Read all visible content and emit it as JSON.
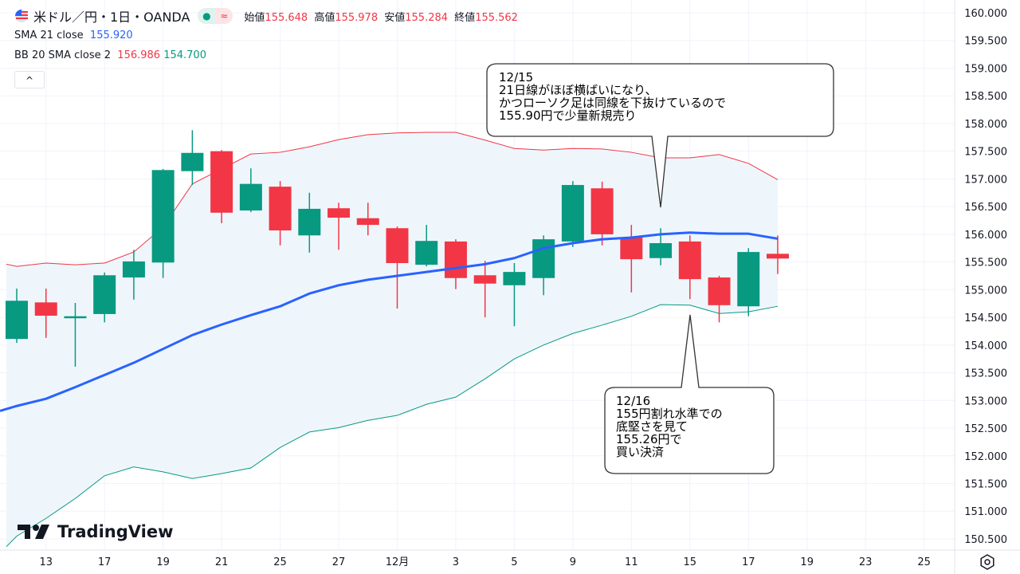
{
  "header": {
    "symbol": "米ドル／円・1日・OANDA",
    "ohlc": [
      {
        "label": "始値",
        "value": "155.648"
      },
      {
        "label": "高値",
        "value": "155.978"
      },
      {
        "label": "安値",
        "value": "155.284"
      },
      {
        "label": "終値",
        "value": "155.562"
      }
    ],
    "status_icon": "●",
    "approx_icon": "≈"
  },
  "indicators": {
    "sma": {
      "label": "SMA 21 close",
      "value": "155.920"
    },
    "bb": {
      "label": "BB 20 SMA close 2",
      "upper": "156.986",
      "lower": "154.700"
    }
  },
  "collapse_label": "^",
  "logo": {
    "text": "TradingView"
  },
  "annotations": [
    {
      "text": "12/15\n21日線がほぼ横ばいになり、\nかつローソク足は同線を下抜けているので\n155.90円で少量新規売り",
      "bar": 22
    },
    {
      "text": "12/16\n155円割れ水準での\n底堅さを見て\n155.26円で\n買い決済",
      "bar": 23
    }
  ],
  "colors": {
    "up": "#089981",
    "down": "#f23645",
    "sma": "#2962ff",
    "bb_upper": "#f23645",
    "bb_lower": "#089981",
    "bb_fill": "#eef6fc"
  },
  "chart_data": {
    "type": "candlestick",
    "title": "米ドル／円・1日・OANDA",
    "ylim": [
      150.3,
      160.0
    ],
    "y_ticks": [
      "160.000",
      "159.500",
      "159.000",
      "158.500",
      "158.000",
      "157.500",
      "157.000",
      "156.500",
      "156.000",
      "155.500",
      "155.000",
      "154.500",
      "154.000",
      "153.500",
      "153.000",
      "152.500",
      "152.000",
      "151.500",
      "151.000",
      "150.500"
    ],
    "x_labels": [
      {
        "bar": 1,
        "label": "13"
      },
      {
        "bar": 3,
        "label": "17"
      },
      {
        "bar": 5,
        "label": "19"
      },
      {
        "bar": 7,
        "label": "21"
      },
      {
        "bar": 9,
        "label": "25"
      },
      {
        "bar": 11,
        "label": "27"
      },
      {
        "bar": 13,
        "label": "12月"
      },
      {
        "bar": 15,
        "label": "3"
      },
      {
        "bar": 17,
        "label": "5"
      },
      {
        "bar": 19,
        "label": "9"
      },
      {
        "bar": 21,
        "label": "11"
      },
      {
        "bar": 23,
        "label": "15"
      },
      {
        "bar": 25,
        "label": "17"
      },
      {
        "bar": 27,
        "label": "19"
      },
      {
        "bar": 29,
        "label": "23"
      },
      {
        "bar": 31,
        "label": "25"
      }
    ],
    "candles": [
      [
        154.11,
        155.02,
        154.04,
        154.8
      ],
      [
        154.77,
        155.02,
        154.13,
        154.53
      ],
      [
        154.49,
        154.76,
        153.61,
        154.52
      ],
      [
        154.56,
        155.31,
        154.41,
        155.26
      ],
      [
        155.22,
        155.72,
        154.82,
        155.51
      ],
      [
        155.49,
        157.18,
        155.21,
        157.16
      ],
      [
        157.14,
        157.88,
        156.89,
        157.47
      ],
      [
        157.5,
        157.52,
        156.2,
        156.39
      ],
      [
        156.43,
        157.19,
        156.4,
        156.91
      ],
      [
        156.86,
        156.96,
        155.8,
        156.07
      ],
      [
        155.98,
        156.75,
        155.67,
        156.46
      ],
      [
        156.47,
        156.57,
        155.72,
        156.3
      ],
      [
        156.29,
        156.57,
        155.98,
        156.17
      ],
      [
        156.11,
        156.14,
        154.66,
        155.48
      ],
      [
        155.45,
        156.17,
        155.42,
        155.88
      ],
      [
        155.87,
        155.91,
        155.01,
        155.21
      ],
      [
        155.26,
        155.52,
        154.5,
        155.11
      ],
      [
        155.08,
        155.48,
        154.34,
        155.32
      ],
      [
        155.21,
        155.98,
        154.9,
        155.91
      ],
      [
        155.87,
        156.96,
        155.77,
        156.89
      ],
      [
        156.83,
        156.95,
        155.8,
        156.0
      ],
      [
        155.94,
        156.17,
        154.95,
        155.55
      ],
      [
        155.57,
        156.11,
        155.44,
        155.84
      ],
      [
        155.87,
        155.98,
        154.83,
        155.19
      ],
      [
        155.22,
        155.25,
        154.41,
        154.72
      ],
      [
        154.7,
        155.75,
        154.52,
        155.68
      ],
      [
        155.648,
        155.978,
        155.284,
        155.562
      ]
    ],
    "sma21": [
      152.9,
      153.03,
      153.24,
      153.46,
      153.68,
      153.93,
      154.18,
      154.37,
      154.54,
      154.7,
      154.93,
      155.08,
      155.18,
      155.25,
      155.32,
      155.39,
      155.46,
      155.57,
      155.75,
      155.84,
      155.91,
      155.94,
      156.0,
      156.03,
      156.01,
      156.01,
      155.92
    ],
    "bb_upper": [
      155.42,
      155.48,
      155.45,
      155.48,
      155.68,
      156.13,
      156.91,
      157.18,
      157.45,
      157.48,
      157.58,
      157.71,
      157.8,
      157.83,
      157.84,
      157.84,
      157.7,
      157.55,
      157.52,
      157.55,
      157.54,
      157.48,
      157.38,
      157.38,
      157.44,
      157.28,
      156.986
    ],
    "bb_lower": [
      150.55,
      150.87,
      151.23,
      151.64,
      151.8,
      151.71,
      151.59,
      151.68,
      151.78,
      152.15,
      152.43,
      152.51,
      152.64,
      152.73,
      152.93,
      153.06,
      153.39,
      153.75,
      154.0,
      154.21,
      154.36,
      154.52,
      154.73,
      154.72,
      154.57,
      154.6,
      154.7
    ]
  }
}
